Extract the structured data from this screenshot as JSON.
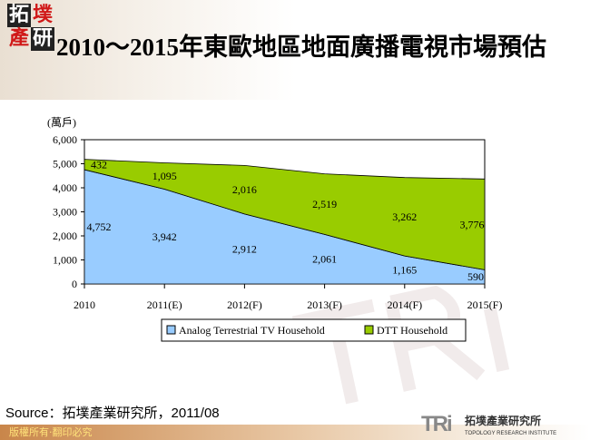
{
  "logo": {
    "chars": [
      "拓",
      "墣",
      "產",
      "研"
    ]
  },
  "title": "2010～2015年東歐地區地面廣播電視市場預估",
  "chart_data": {
    "type": "area",
    "stacked": true,
    "unit_label": "(萬戶)",
    "categories": [
      "2010",
      "2011(E)",
      "2012(F)",
      "2013(F)",
      "2014(F)",
      "2015(F)"
    ],
    "series": [
      {
        "name": "Analog Terrestrial TV Household",
        "values": [
          4752,
          3942,
          2912,
          2061,
          1165,
          590
        ],
        "color": "#99ccff"
      },
      {
        "name": "DTT Household",
        "values": [
          432,
          1095,
          2016,
          2519,
          3262,
          3776
        ],
        "color": "#99cc00"
      }
    ],
    "ylim": [
      0,
      6000
    ],
    "yticks": [
      "0",
      "1,000",
      "2,000",
      "3,000",
      "4,000",
      "5,000",
      "6,000"
    ],
    "data_labels": [
      [
        "4,752",
        "3,942",
        "2,912",
        "2,061",
        "1,165",
        "590"
      ],
      [
        "432",
        "1,095",
        "2,016",
        "2,519",
        "3,262",
        "3,776"
      ]
    ],
    "legend_position": "bottom",
    "grid": false
  },
  "source": "Source：拓墣產業研究所，2011/08",
  "footer": {
    "copyright": "版權所有‧翻印必究",
    "brand_mark": "TRi",
    "brand_cn": "拓墣產業研究所",
    "brand_en": "TOPOLOGY RESEARCH INSTITUTE"
  }
}
